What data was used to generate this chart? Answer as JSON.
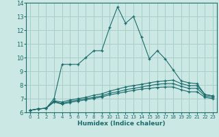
{
  "xlabel": "Humidex (Indice chaleur)",
  "background_color": "#cce8e4",
  "grid_color": "#a8ceca",
  "line_color": "#1a6b6b",
  "xlim": [
    -0.5,
    23.5
  ],
  "ylim": [
    6,
    14
  ],
  "xticks": [
    0,
    1,
    2,
    3,
    4,
    5,
    6,
    7,
    8,
    9,
    10,
    11,
    12,
    13,
    14,
    15,
    16,
    17,
    18,
    19,
    20,
    21,
    22,
    23
  ],
  "yticks": [
    6,
    7,
    8,
    9,
    10,
    11,
    12,
    13,
    14
  ],
  "s1_x": [
    0,
    1,
    2,
    3,
    4,
    5,
    6,
    7,
    8,
    9,
    10,
    11,
    12,
    13,
    14,
    15,
    16,
    17,
    18,
    19,
    20,
    21,
    22,
    23
  ],
  "s1_y": [
    6.15,
    6.25,
    6.3,
    7.0,
    9.5,
    9.5,
    9.5,
    10.0,
    10.5,
    10.5,
    12.2,
    13.7,
    12.5,
    13.0,
    11.5,
    9.9,
    10.5,
    9.9,
    9.1,
    8.3,
    8.15,
    8.1,
    7.3,
    7.2
  ],
  "s2_x": [
    0,
    1,
    2,
    3,
    4,
    5,
    6,
    7,
    8,
    9,
    10,
    11,
    12,
    13,
    14,
    15,
    16,
    17,
    18,
    19,
    20,
    21,
    22,
    23
  ],
  "s2_y": [
    6.15,
    6.25,
    6.3,
    6.85,
    6.75,
    6.9,
    7.0,
    7.1,
    7.25,
    7.35,
    7.55,
    7.7,
    7.85,
    7.95,
    8.05,
    8.15,
    8.25,
    8.3,
    8.35,
    8.1,
    7.95,
    7.95,
    7.3,
    7.2
  ],
  "s3_x": [
    0,
    1,
    2,
    3,
    4,
    5,
    6,
    7,
    8,
    9,
    10,
    11,
    12,
    13,
    14,
    15,
    16,
    17,
    18,
    19,
    20,
    21,
    22,
    23
  ],
  "s3_y": [
    6.15,
    6.25,
    6.3,
    6.8,
    6.65,
    6.8,
    6.9,
    7.0,
    7.1,
    7.2,
    7.4,
    7.5,
    7.65,
    7.75,
    7.85,
    7.95,
    8.05,
    8.1,
    8.1,
    7.9,
    7.75,
    7.75,
    7.2,
    7.1
  ],
  "s4_x": [
    0,
    1,
    2,
    3,
    4,
    5,
    6,
    7,
    8,
    9,
    10,
    11,
    12,
    13,
    14,
    15,
    16,
    17,
    18,
    19,
    20,
    21,
    22,
    23
  ],
  "s4_y": [
    6.15,
    6.25,
    6.3,
    6.75,
    6.6,
    6.72,
    6.82,
    6.92,
    7.02,
    7.12,
    7.28,
    7.38,
    7.5,
    7.6,
    7.7,
    7.75,
    7.82,
    7.85,
    7.85,
    7.65,
    7.5,
    7.5,
    7.1,
    7.0
  ]
}
